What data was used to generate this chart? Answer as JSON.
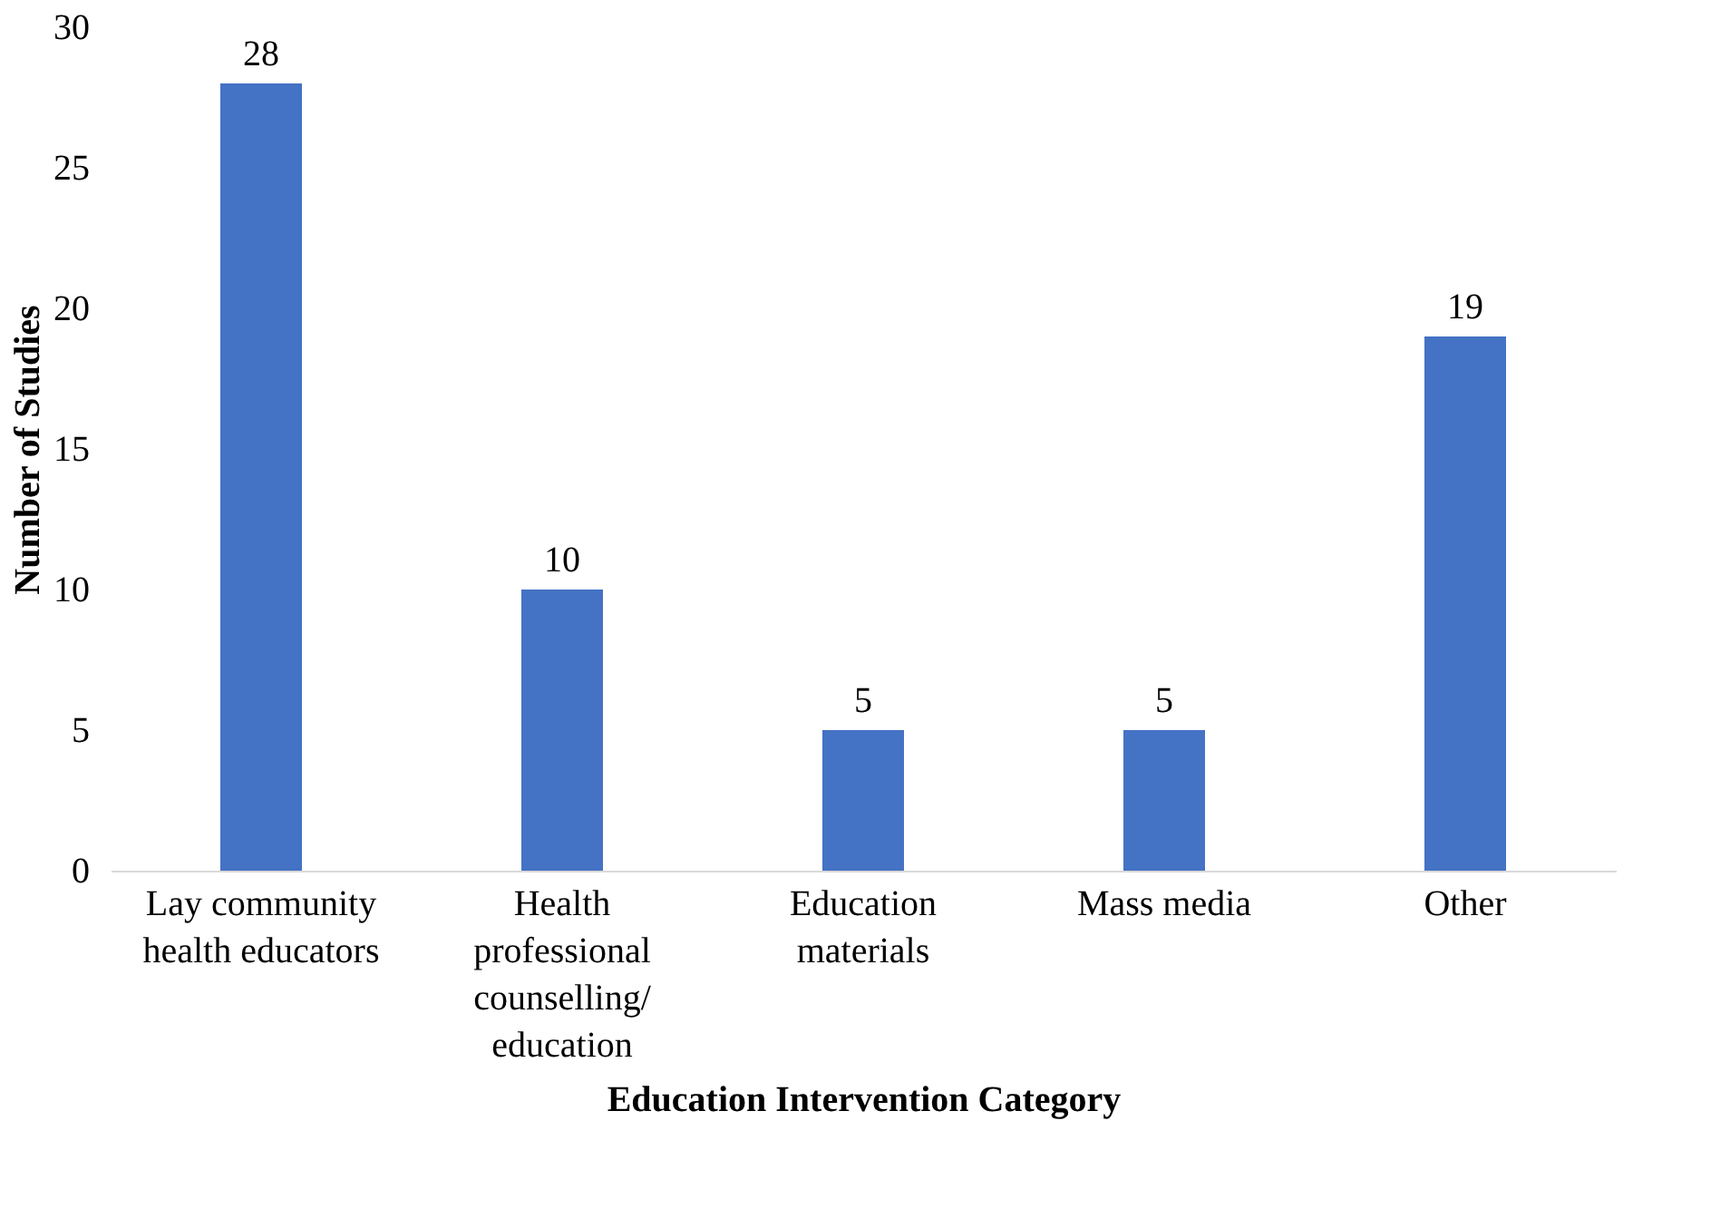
{
  "chart_data": {
    "type": "bar",
    "categories": [
      "Lay community health educators",
      "Health professional counselling/ education",
      "Education materials",
      "Mass media",
      "Other"
    ],
    "values": [
      28,
      10,
      5,
      5,
      19
    ],
    "color": "#4472c4",
    "xlabel": "Education Intervention Category",
    "ylabel": "Number of Studies",
    "ylim": [
      0,
      30
    ],
    "yticks": [
      0,
      5,
      10,
      15,
      20,
      25,
      30
    ],
    "grid": false,
    "data_labels": true
  }
}
